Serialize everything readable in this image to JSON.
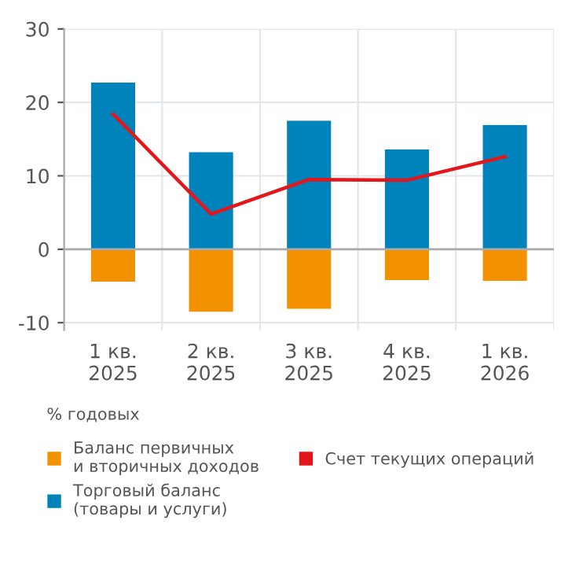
{
  "chart_data": {
    "type": "bar",
    "stacked": true,
    "categories": [
      "1 кв.\n2025",
      "2 кв.\n2025",
      "3 кв.\n2025",
      "4 кв.\n2025",
      "1 кв.\n2026"
    ],
    "series": [
      {
        "name": "Баланс первичных\nи вторичных доходов",
        "color": "#f39200",
        "values": [
          -4.4,
          -8.5,
          -8.1,
          -4.2,
          -4.3
        ]
      },
      {
        "name": "Торговый баланс\n(товары и услуги)",
        "color": "#0082ba",
        "values": [
          22.7,
          13.2,
          17.5,
          13.6,
          16.9
        ]
      },
      {
        "name": "Счет текущих операций",
        "type": "line",
        "color": "#e3161b",
        "values": [
          18.4,
          4.8,
          9.5,
          9.4,
          12.6
        ]
      }
    ],
    "ylim": [
      -11,
      30
    ],
    "yticks": [
      -10,
      0,
      10,
      20,
      30
    ],
    "grid": true,
    "legend": "bottom",
    "annotations": [
      "% годовых"
    ]
  }
}
